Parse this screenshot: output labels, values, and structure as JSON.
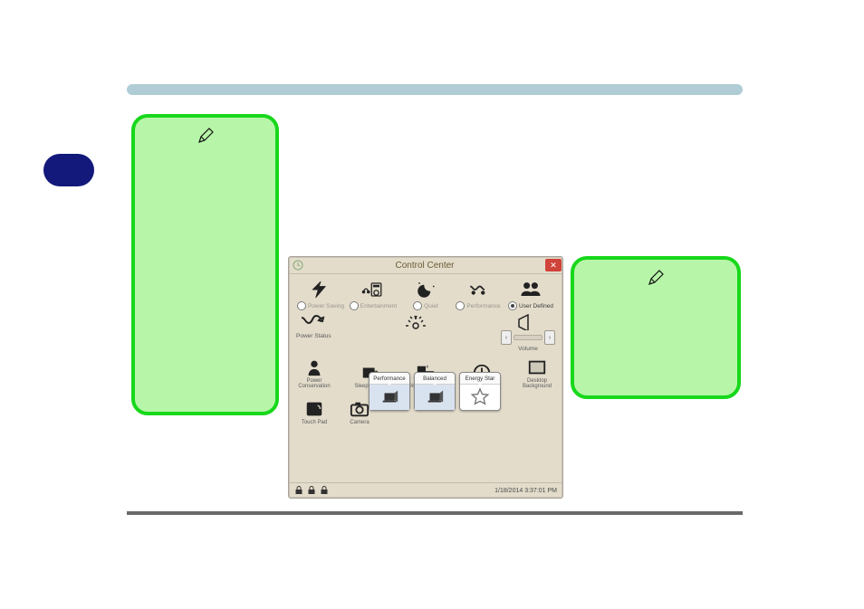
{
  "colors": {
    "hr": "#b0cdd6",
    "pill": "#12197a",
    "note_fill": "#b7f6a8",
    "note_border": "#17d81b",
    "win_bg": "#e3dccb",
    "close": "#d0433a"
  },
  "window": {
    "title": "Control Center",
    "timestamp": "1/18/2014 3:37:01 PM"
  },
  "modes": [
    {
      "key": "power_saving",
      "label": "Power Saving",
      "selected": false
    },
    {
      "key": "entertainment",
      "label": "Entertainment",
      "selected": false
    },
    {
      "key": "quiet",
      "label": "Quiet",
      "selected": false
    },
    {
      "key": "performance",
      "label": "Performance",
      "selected": false
    },
    {
      "key": "user_defined",
      "label": "User Defined",
      "selected": true
    }
  ],
  "row2": {
    "power_status": "Power Status",
    "volume": "Volume"
  },
  "row3": [
    {
      "key": "power_conservation",
      "label": "Power\nConservation"
    },
    {
      "key": "sleep_button",
      "label": "Sleep Button"
    },
    {
      "key": "display_switch",
      "label": "Display Switch"
    },
    {
      "key": "time_zone",
      "label": "Time Zone"
    },
    {
      "key": "desktop_background",
      "label": "Desktop\nBackground"
    }
  ],
  "row4": [
    {
      "key": "touch_pad",
      "label": "Touch Pad"
    },
    {
      "key": "camera",
      "label": "Camera"
    }
  ],
  "popups": [
    {
      "key": "perf",
      "label": "Performance"
    },
    {
      "key": "balanced",
      "label": "Balanced"
    },
    {
      "key": "energy",
      "label": "Energy Star"
    }
  ]
}
